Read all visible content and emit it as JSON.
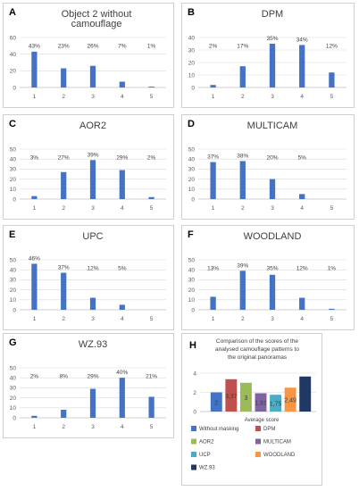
{
  "chart_data": [
    {
      "id": "A",
      "letter": "A",
      "type": "bar",
      "title_lines": [
        "Object 2 without",
        "camouflage"
      ],
      "categories": [
        "1",
        "2",
        "3",
        "4",
        "5"
      ],
      "values": [
        43,
        23,
        26,
        7,
        1
      ],
      "data_labels": [
        "43%",
        "23%",
        "26%",
        "7%",
        "1%"
      ],
      "yticks": [
        "0",
        "20",
        "40",
        "60"
      ],
      "ylim": [
        0,
        60
      ],
      "grid": true,
      "color": "#4472c4"
    },
    {
      "id": "B",
      "letter": "B",
      "type": "bar",
      "title_lines": [
        "DPM"
      ],
      "categories": [
        "1",
        "2",
        "3",
        "4",
        "5"
      ],
      "values": [
        2,
        17,
        35,
        34,
        12
      ],
      "data_labels": [
        "2%",
        "17%",
        "35%",
        "34%",
        "12%"
      ],
      "yticks": [
        "0",
        "10",
        "20",
        "30",
        "40"
      ],
      "ylim": [
        0,
        40
      ],
      "grid": true,
      "color": "#4472c4"
    },
    {
      "id": "C",
      "letter": "C",
      "type": "bar",
      "title_lines": [
        "AOR2"
      ],
      "categories": [
        "1",
        "2",
        "3",
        "4",
        "5"
      ],
      "values": [
        3,
        27,
        39,
        29,
        2
      ],
      "data_labels": [
        "3%",
        "27%",
        "39%",
        "29%",
        "2%"
      ],
      "yticks": [
        "0",
        "10",
        "20",
        "30",
        "40",
        "50"
      ],
      "ylim": [
        0,
        50
      ],
      "grid": true,
      "color": "#4472c4"
    },
    {
      "id": "D",
      "letter": "D",
      "type": "bar",
      "title_lines": [
        "MULTICAM"
      ],
      "categories": [
        "1",
        "2",
        "3",
        "4",
        "5"
      ],
      "values": [
        37,
        38,
        20,
        5,
        0
      ],
      "data_labels": [
        "37%",
        "38%",
        "20%",
        "5%",
        ""
      ],
      "yticks": [
        "0",
        "10",
        "20",
        "30",
        "40",
        "50"
      ],
      "ylim": [
        0,
        50
      ],
      "grid": true,
      "color": "#4472c4"
    },
    {
      "id": "E",
      "letter": "E",
      "type": "bar",
      "title_lines": [
        "UPC"
      ],
      "categories": [
        "1",
        "2",
        "3",
        "4",
        "5"
      ],
      "values": [
        46,
        37,
        12,
        5,
        0
      ],
      "data_labels": [
        "46%",
        "37%",
        "12%",
        "5%",
        ""
      ],
      "yticks": [
        "0",
        "10",
        "20",
        "30",
        "40",
        "50"
      ],
      "ylim": [
        0,
        50
      ],
      "grid": true,
      "color": "#4472c4"
    },
    {
      "id": "F",
      "letter": "F",
      "type": "bar",
      "title_lines": [
        "WOODLAND"
      ],
      "categories": [
        "1",
        "2",
        "3",
        "4",
        "5"
      ],
      "values": [
        13,
        39,
        35,
        12,
        1
      ],
      "data_labels": [
        "13%",
        "39%",
        "35%",
        "12%",
        "1%"
      ],
      "yticks": [
        "0",
        "10",
        "20",
        "30",
        "40",
        "50"
      ],
      "ylim": [
        0,
        50
      ],
      "grid": true,
      "color": "#4472c4"
    },
    {
      "id": "G",
      "letter": "G",
      "type": "bar",
      "title_lines": [
        "WZ.93"
      ],
      "categories": [
        "1",
        "2",
        "3",
        "4",
        "5"
      ],
      "values": [
        2,
        8,
        29,
        40,
        21
      ],
      "data_labels": [
        "2%",
        "8%",
        "29%",
        "40%",
        "21%"
      ],
      "yticks": [
        "0",
        "10",
        "20",
        "30",
        "40",
        "50"
      ],
      "ylim": [
        0,
        50
      ],
      "grid": true,
      "color": "#4472c4"
    },
    {
      "id": "H",
      "letter": "H",
      "type": "bar",
      "title_lines": [
        "Comparison of the scores of the",
        "analysed camouflage patterns to",
        "the original panoramas"
      ],
      "xlabel": "Average score",
      "yticks": [
        "0",
        "2",
        "4"
      ],
      "ylim": [
        0,
        4
      ],
      "grid": true,
      "series": [
        {
          "name": "Without masking",
          "value": 2.0,
          "label": "2",
          "color": "#4472c4"
        },
        {
          "name": "DPM",
          "value": 3.37,
          "label": "3,37",
          "color": "#c0504d"
        },
        {
          "name": "AOR2",
          "value": 3.0,
          "label": "3",
          "color": "#9bbb59"
        },
        {
          "name": "MULTICAM",
          "value": 1.91,
          "label": "1,91",
          "color": "#8064a2"
        },
        {
          "name": "UCP",
          "value": 1.75,
          "label": "1,75",
          "color": "#4bacc6"
        },
        {
          "name": "WOODLAND",
          "value": 2.49,
          "label": "2,49",
          "color": "#f79646"
        },
        {
          "name": "WZ.93",
          "value": 3.65,
          "label": "",
          "color": "#1f3864"
        }
      ]
    }
  ]
}
